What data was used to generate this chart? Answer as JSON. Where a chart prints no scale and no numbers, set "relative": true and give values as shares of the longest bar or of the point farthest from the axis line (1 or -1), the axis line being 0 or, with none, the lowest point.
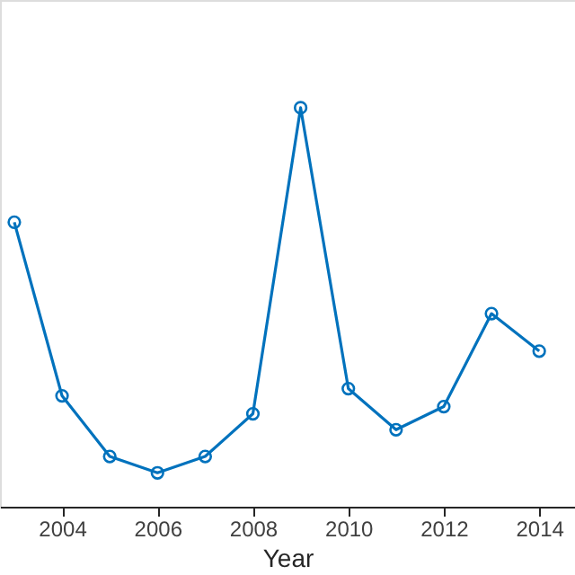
{
  "chart_data": {
    "type": "line",
    "xlabel": "Year",
    "relative": true,
    "x": [
      2003,
      2004,
      2005,
      2006,
      2007,
      2008,
      2009,
      2010,
      2011,
      2012,
      2013,
      2014
    ],
    "series": [
      {
        "color": "#0072bd",
        "values": [
          0.713,
          0.278,
          0.126,
          0.085,
          0.126,
          0.233,
          1,
          0.296,
          0.193,
          0.251,
          0.484,
          0.39
        ]
      }
    ],
    "xlim": [
      2002.7,
      2014.75
    ],
    "xticks": [
      2004,
      2006,
      2008,
      2010,
      2012,
      2014
    ],
    "marker": "circle",
    "line_style": "solid",
    "grid": false,
    "legend": false
  }
}
